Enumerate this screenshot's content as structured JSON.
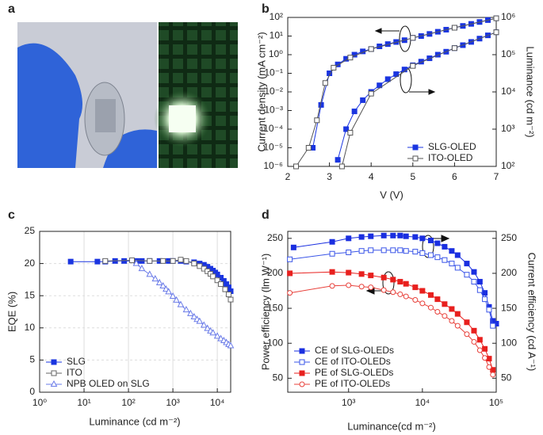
{
  "photo_panel": {
    "label": "a"
  },
  "chart_data": [
    {
      "type": "line",
      "panel_label": "b",
      "xlabel": "V (V)",
      "ylabel": "Current density (mA cm⁻²)",
      "y2label": "Luminance (cd m⁻²)",
      "xlim": [
        2,
        7
      ],
      "xticks": [
        2,
        3,
        4,
        5,
        6,
        7
      ],
      "ylim": [
        1e-06,
        100
      ],
      "yscale": "log",
      "yticks": [
        {
          "value": 1e-06,
          "label": "10⁻⁶"
        },
        {
          "value": 1e-05,
          "label": "10⁻⁵"
        },
        {
          "value": 0.0001,
          "label": "10⁻⁴"
        },
        {
          "value": 0.001,
          "label": "10⁻³"
        },
        {
          "value": 0.01,
          "label": "10⁻²"
        },
        {
          "value": 0.1,
          "label": "10⁻¹"
        },
        {
          "value": 1,
          "label": "10⁰"
        },
        {
          "value": 10,
          "label": "10¹"
        },
        {
          "value": 100,
          "label": "10²"
        }
      ],
      "y2lim": [
        100,
        1000000
      ],
      "y2scale": "log",
      "y2ticks": [
        {
          "value": 100,
          "label": "10²"
        },
        {
          "value": 1000,
          "label": "10³"
        },
        {
          "value": 10000,
          "label": "10⁴"
        },
        {
          "value": 100000,
          "label": "10⁵"
        },
        {
          "value": 1000000,
          "label": "10⁶"
        }
      ],
      "grid": false,
      "legend": "lower right",
      "series": [
        {
          "name": "SLG-OLED",
          "color": "#1a35e0",
          "marker": "square",
          "x": [
            2.6,
            2.8,
            3.0,
            3.2,
            3.4,
            3.6,
            3.8,
            4.0,
            4.2,
            4.4,
            4.6,
            4.8,
            5.0,
            5.2,
            5.4,
            5.6,
            5.8,
            6.0,
            6.2,
            6.4,
            6.6,
            6.8,
            7.0
          ],
          "values": [
            1e-05,
            0.002,
            0.1,
            0.3,
            0.6,
            1,
            1.5,
            2,
            2.8,
            3.7,
            4.8,
            6,
            8,
            10,
            13,
            17,
            22,
            28,
            35,
            45,
            57,
            72,
            90
          ]
        },
        {
          "name": "ITO-OLED",
          "color": "#555555",
          "marker": "open-square",
          "x": [
            2.2,
            2.5,
            2.7,
            2.9,
            3.1,
            3.5,
            4,
            5,
            6,
            7
          ],
          "values": [
            1e-06,
            1e-05,
            0.0003,
            0.03,
            0.2,
            0.7,
            2,
            8,
            28,
            90
          ]
        },
        {
          "color": "#1a35e0",
          "marker": "square",
          "axis": "y2",
          "x": [
            3.2,
            3.4,
            3.6,
            3.8,
            4.0,
            4.2,
            4.4,
            4.6,
            4.8,
            5.0,
            5.2,
            5.4,
            5.6,
            5.8,
            6.0,
            6.2,
            6.4,
            6.6,
            6.8,
            7.0
          ],
          "values": [
            150,
            1000,
            3000,
            6000,
            10000,
            15000,
            22000,
            30000,
            40000,
            52000,
            65000,
            80000,
            100000,
            120000,
            150000,
            180000,
            220000,
            270000,
            330000,
            400000
          ]
        },
        {
          "color": "#555555",
          "marker": "open-square",
          "axis": "y2",
          "x": [
            3.3,
            3.5,
            4,
            5,
            6,
            7
          ],
          "values": [
            100,
            800,
            9000,
            50000,
            150000,
            400000
          ]
        }
      ]
    },
    {
      "type": "line",
      "panel_label": "c",
      "xlabel": "Luminance (cd m⁻²)",
      "ylabel": "EQE (%)",
      "xlim": [
        1,
        20000
      ],
      "xscale": "log",
      "xticks": [
        {
          "value": 1,
          "label": "10⁰"
        },
        {
          "value": 10,
          "label": "10¹"
        },
        {
          "value": 100,
          "label": "10²"
        },
        {
          "value": 1000,
          "label": "10³"
        },
        {
          "value": 10000,
          "label": "10⁴"
        }
      ],
      "ylim": [
        0,
        25
      ],
      "yticks": [
        0,
        5,
        10,
        15,
        20,
        25
      ],
      "grid": true,
      "legend": "lower left",
      "series": [
        {
          "name": "SLG",
          "color": "#1a35e0",
          "marker": "square",
          "x": [
            5,
            20,
            30,
            50,
            80,
            150,
            200,
            300,
            500,
            800,
            1000,
            1500,
            2000,
            3000,
            4000,
            5000,
            6000,
            7000,
            8000,
            9000,
            10000,
            12000,
            14000,
            16000,
            18000,
            20000
          ],
          "values": [
            20.3,
            20.3,
            20.3,
            20.4,
            20.4,
            20.4,
            20.4,
            20.4,
            20.4,
            20.4,
            20.4,
            20.4,
            20.3,
            20.2,
            20.0,
            19.8,
            19.5,
            19.2,
            18.9,
            18.6,
            18.3,
            17.8,
            17.3,
            16.8,
            16.3,
            15.7
          ]
        },
        {
          "name": "ITO",
          "color": "#666666",
          "marker": "open-square",
          "x": [
            30,
            120,
            300,
            600,
            1000,
            1500,
            2000,
            3000,
            4000,
            5000,
            6000,
            7000,
            8000,
            10000,
            12000,
            15000,
            18000,
            20000
          ],
          "values": [
            20.4,
            20.5,
            20.4,
            20.4,
            20.4,
            20.6,
            20.4,
            20.0,
            19.6,
            19.2,
            18.8,
            18.4,
            18.0,
            17.4,
            16.8,
            16.0,
            15.2,
            14.4
          ]
        },
        {
          "name": "NPB OLED on SLG",
          "color": "#6a7be8",
          "marker": "open-triangle",
          "x": [
            150,
            200,
            300,
            400,
            500,
            600,
            700,
            800,
            1000,
            1200,
            1500,
            2000,
            2500,
            3000,
            3500,
            4000,
            5000,
            6000,
            7000,
            8000,
            10000,
            12000,
            14000,
            16000,
            18000,
            20000
          ],
          "values": [
            20,
            19.2,
            18.3,
            17.6,
            17,
            16.5,
            16,
            15.6,
            14.9,
            14.3,
            13.6,
            12.8,
            12.2,
            11.7,
            11.3,
            11,
            10.4,
            9.9,
            9.5,
            9.2,
            8.7,
            8.3,
            8,
            7.7,
            7.4,
            7.2
          ]
        }
      ]
    },
    {
      "type": "line",
      "panel_label": "d",
      "xlabel": "Luminance(cd m⁻²)",
      "ylabel": "Power efficiency (lm W⁻¹)",
      "y2label": "Current efficiency (cd A⁻¹)",
      "xlim": [
        150,
        100000
      ],
      "xscale": "log",
      "xticks": [
        {
          "value": 1000,
          "label": "10³"
        },
        {
          "value": 10000,
          "label": "10⁴"
        },
        {
          "value": 100000,
          "label": "10⁵"
        }
      ],
      "ylim": [
        30,
        260
      ],
      "yticks": [
        50,
        100,
        150,
        200,
        250
      ],
      "y2lim": [
        30,
        260
      ],
      "y2ticks": [
        50,
        100,
        150,
        200,
        250
      ],
      "grid": false,
      "legend": "lower left",
      "series": [
        {
          "name": "CE of SLG-OLEDs",
          "color": "#1a2fe0",
          "marker": "square",
          "axis": "y2",
          "x": [
            180,
            600,
            1000,
            1500,
            2000,
            3000,
            4000,
            5000,
            6000,
            8000,
            10000,
            13000,
            16000,
            20000,
            25000,
            30000,
            40000,
            50000,
            60000,
            70000,
            80000,
            90000,
            100000
          ],
          "values": [
            237,
            245,
            250,
            252,
            253,
            254,
            254,
            254,
            253,
            252,
            250,
            247,
            243,
            238,
            232,
            226,
            214,
            202,
            188,
            172,
            152,
            132,
            128
          ]
        },
        {
          "name": "CE of ITO-OLEDs",
          "color": "#3a55e8",
          "marker": "open-square",
          "axis": "y2",
          "x": [
            160,
            600,
            1000,
            1500,
            2000,
            3000,
            4000,
            5000,
            6000,
            8000,
            10000,
            13000,
            16000,
            20000,
            25000,
            30000,
            40000,
            50000,
            60000,
            70000,
            80000,
            90000
          ],
          "values": [
            220,
            228,
            230,
            232,
            233,
            233,
            233,
            233,
            232,
            231,
            229,
            226,
            223,
            219,
            214,
            208,
            198,
            188,
            176,
            163,
            148,
            125
          ]
        },
        {
          "name": "PE of SLG-OLEDs",
          "color": "#e8201e",
          "marker": "square",
          "x": [
            160,
            600,
            1000,
            1500,
            2000,
            3000,
            4000,
            5000,
            6000,
            8000,
            10000,
            13000,
            16000,
            20000,
            25000,
            30000,
            40000,
            50000,
            60000,
            70000,
            80000,
            90000
          ],
          "values": [
            200,
            202,
            201,
            199,
            197,
            194,
            191,
            188,
            185,
            180,
            175,
            169,
            163,
            156,
            149,
            142,
            130,
            118,
            105,
            92,
            78,
            62
          ]
        },
        {
          "name": "PE of ITO-OLEDs",
          "color": "#e8403a",
          "marker": "open-circle",
          "x": [
            160,
            600,
            1000,
            1500,
            2000,
            3000,
            4000,
            5000,
            6000,
            8000,
            10000,
            13000,
            16000,
            20000,
            25000,
            30000,
            40000,
            50000,
            60000,
            70000,
            80000,
            90000
          ],
          "values": [
            172,
            182,
            183,
            181,
            180,
            176,
            173,
            170,
            167,
            162,
            157,
            151,
            145,
            139,
            132,
            125,
            113,
            102,
            90,
            79,
            66,
            55
          ]
        }
      ]
    }
  ]
}
